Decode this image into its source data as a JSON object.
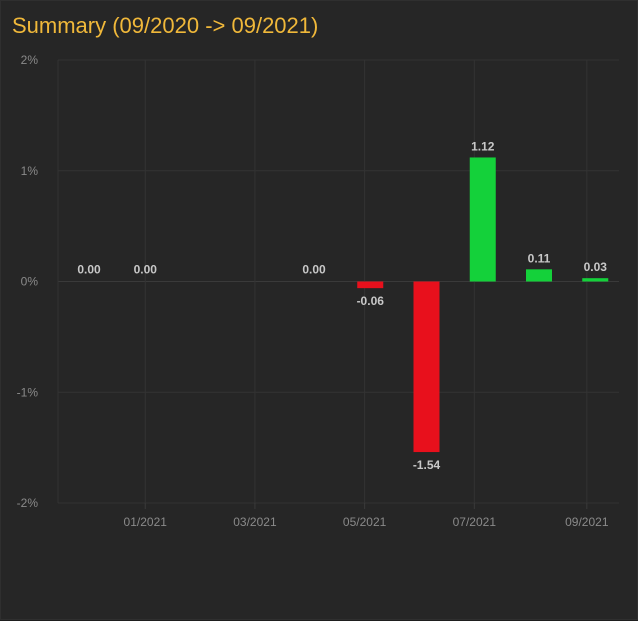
{
  "chart_data": {
    "type": "bar",
    "title": "Summary (09/2020 -> 09/2021)",
    "y_tick_labels": [
      "2%",
      "1%",
      "0%",
      "-1%",
      "-2%"
    ],
    "y_ticks": [
      2,
      1,
      0,
      -1,
      -2
    ],
    "ylim": [
      -2,
      2
    ],
    "x_tick_labels": [
      "01/2021",
      "03/2021",
      "05/2021",
      "07/2021",
      "09/2021"
    ],
    "bars": [
      {
        "x": 0.0,
        "value": 0.0,
        "label": "0.00"
      },
      {
        "x": 1.0,
        "value": 0.0,
        "label": "0.00"
      },
      {
        "x": 4.0,
        "value": 0.0,
        "label": "0.00"
      },
      {
        "x": 5.0,
        "value": -0.06,
        "label": "-0.06"
      },
      {
        "x": 6.0,
        "value": -1.54,
        "label": "-1.54"
      },
      {
        "x": 7.0,
        "value": 1.12,
        "label": "1.12"
      },
      {
        "x": 8.0,
        "value": 0.11,
        "label": "0.11"
      },
      {
        "x": 9.0,
        "value": 0.03,
        "label": "0.03"
      }
    ],
    "grid": true,
    "colors": {
      "positive": "#14d13a",
      "negative": "#e8101c",
      "title": "#f0b83a"
    }
  }
}
